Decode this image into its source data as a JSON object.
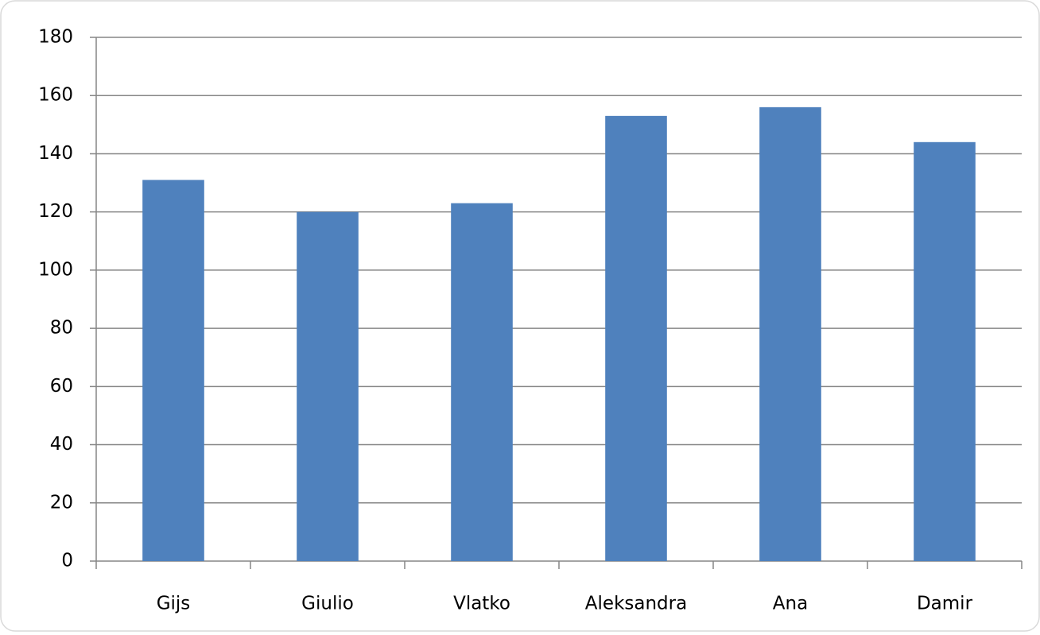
{
  "chart_data": {
    "type": "bar",
    "categories": [
      "Gijs",
      "Giulio",
      "Vlatko",
      "Aleksandra",
      "Ana",
      "Damir"
    ],
    "values": [
      131,
      120,
      123,
      153,
      156,
      144
    ],
    "color": "#4f81bd",
    "ylim": [
      0,
      180
    ],
    "yticks": [
      0,
      20,
      40,
      60,
      80,
      100,
      120,
      140,
      160,
      180
    ],
    "grid": true
  }
}
